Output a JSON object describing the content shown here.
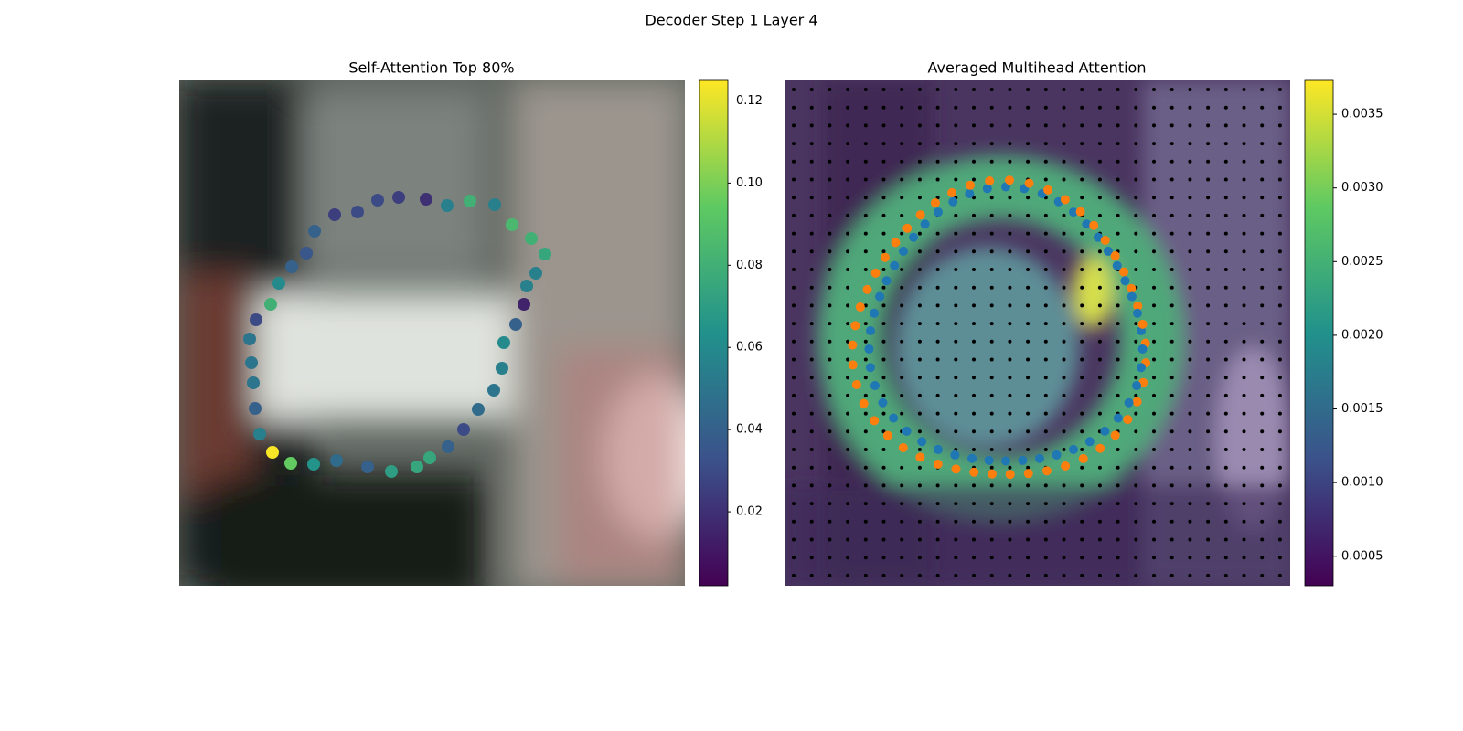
{
  "title": "Decoder Step 1 Layer 4",
  "chart_data": [
    {
      "type": "scatter",
      "title": "Self-Attention Top 80%",
      "xlim": [
        0,
        553
      ],
      "ylim": [
        553,
        0
      ],
      "x": [
        102,
        122,
        147,
        172,
        206,
        232,
        260,
        274,
        294,
        311,
        327,
        344,
        353,
        355,
        368,
        377,
        380,
        390,
        400,
        385,
        364,
        345,
        318,
        293,
        270,
        240,
        217,
        195,
        170,
        148,
        139,
        123,
        109,
        100,
        84,
        77,
        79,
        81,
        83,
        88
      ],
      "y": [
        407,
        419,
        420,
        416,
        423,
        428,
        423,
        413,
        401,
        382,
        360,
        339,
        315,
        287,
        267,
        245,
        225,
        211,
        190,
        173,
        158,
        136,
        132,
        137,
        130,
        128,
        131,
        144,
        147,
        165,
        189,
        204,
        222,
        245,
        262,
        283,
        309,
        331,
        359,
        387
      ],
      "values": [
        0.124,
        0.095,
        0.065,
        0.045,
        0.04,
        0.07,
        0.075,
        0.075,
        0.04,
        0.03,
        0.045,
        0.05,
        0.055,
        0.06,
        0.04,
        0.015,
        0.055,
        0.055,
        0.075,
        0.08,
        0.085,
        0.055,
        0.08,
        0.055,
        0.02,
        0.025,
        0.03,
        0.03,
        0.025,
        0.04,
        0.035,
        0.04,
        0.06,
        0.08,
        0.03,
        0.05,
        0.05,
        0.05,
        0.04,
        0.055
      ],
      "colorbar": {
        "lim": [
          0.002,
          0.125
        ],
        "ticks": [
          0.02,
          0.04,
          0.06,
          0.08,
          {
            "value": 0.1,
            "label": "0.10"
          },
          0.12
        ]
      }
    },
    {
      "type": "heatmap",
      "title": "Averaged Multihead Attention",
      "colorbar": {
        "lim": [
          0.0003,
          0.00373
        ],
        "ticks": [
          0.0005,
          {
            "value": 0.001,
            "label": "0.0010"
          },
          0.0015,
          {
            "value": 0.002,
            "label": "0.0020"
          },
          0.0025,
          {
            "value": 0.003,
            "label": "0.0030"
          },
          0.0035
        ]
      }
    }
  ]
}
